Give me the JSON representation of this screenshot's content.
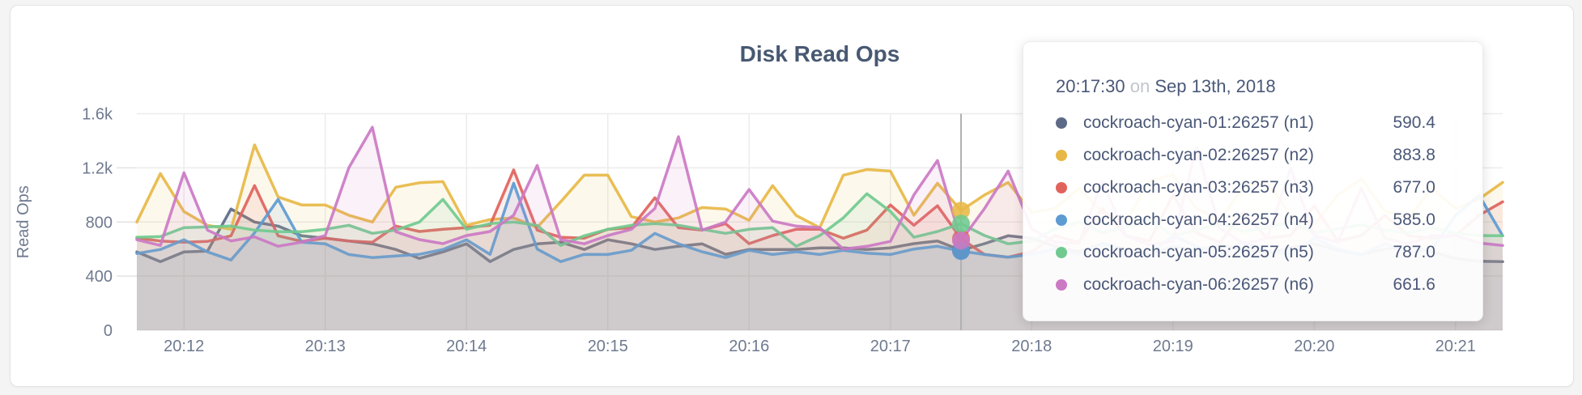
{
  "page": {
    "background": "#f4f4f4"
  },
  "chart_data": {
    "type": "line",
    "title": "Disk Read Ops",
    "ylabel": "Read Ops",
    "grid": true,
    "ylim": [
      0,
      1600
    ],
    "y_ticks": [
      {
        "value": 0,
        "label": "0"
      },
      {
        "value": 400,
        "label": "400"
      },
      {
        "value": 800,
        "label": "800"
      },
      {
        "value": 1200,
        "label": "1.2k"
      },
      {
        "value": 1600,
        "label": "1.6k"
      }
    ],
    "x_start": "20:11:40",
    "x_interval_seconds": 10,
    "x_tick_labels": [
      "20:12",
      "20:13",
      "20:14",
      "20:15",
      "20:16",
      "20:17",
      "20:18",
      "20:19",
      "20:20",
      "20:21"
    ],
    "series": [
      {
        "name": "cockroach-cyan-01:26257 (n1)",
        "node": "n1",
        "color": "#5c6a85",
        "values": [
          579,
          507,
          579,
          585,
          896,
          800,
          770,
          698,
          680,
          660,
          639,
          597,
          531,
          579,
          639,
          507,
          597,
          639,
          651,
          597,
          669,
          639,
          597,
          621,
          639,
          561,
          597,
          597,
          597,
          609,
          609,
          597,
          609,
          640,
          660,
          590.4,
          640,
          698,
          680,
          620,
          580,
          640,
          600,
          560,
          620,
          590,
          630,
          600,
          570,
          610,
          640,
          590,
          560,
          600,
          620,
          580,
          530,
          510,
          507
        ]
      },
      {
        "name": "cockroach-cyan-02:26257 (n2)",
        "node": "n2",
        "color": "#e7b845",
        "values": [
          800,
          1158,
          877,
          776,
          746,
          1370,
          985,
          926,
          926,
          850,
          800,
          1057,
          1090,
          1098,
          776,
          818,
          830,
          760,
          950,
          1146,
          1146,
          840,
          800,
          830,
          907,
          896,
          812,
          1069,
          848,
          758,
          1146,
          1188,
          1176,
          850,
          1086,
          883.8,
          1000,
          1092,
          870,
          900,
          1050,
          870,
          800,
          1100,
          1150,
          900,
          820,
          1060,
          1100,
          850,
          780,
          1000,
          1120,
          880,
          830,
          1050,
          900,
          970,
          1093
        ]
      },
      {
        "name": "cockroach-cyan-03:26257 (n3)",
        "node": "n3",
        "color": "#e0635c",
        "values": [
          681,
          660,
          651,
          657,
          698,
          1069,
          698,
          657,
          680,
          660,
          650,
          770,
          730,
          746,
          758,
          776,
          1185,
          740,
          687,
          680,
          746,
          758,
          979,
          758,
          740,
          788,
          640,
          700,
          746,
          746,
          680,
          740,
          926,
          776,
          920,
          677,
          560,
          540,
          580,
          700,
          650,
          900,
          700,
          660,
          1000,
          720,
          650,
          870,
          680,
          700,
          920,
          660,
          700,
          850,
          700,
          680,
          700,
          850,
          949
        ]
      },
      {
        "name": "cockroach-cyan-04:26257 (n4)",
        "node": "n4",
        "color": "#5d9bd3",
        "values": [
          567,
          597,
          669,
          579,
          519,
          720,
          967,
          651,
          639,
          560,
          537,
          549,
          561,
          597,
          669,
          561,
          1086,
          600,
          507,
          561,
          560,
          591,
          716,
          639,
          580,
          537,
          591,
          560,
          580,
          560,
          591,
          570,
          560,
          600,
          620,
          585,
          560,
          540,
          560,
          600,
          560,
          640,
          580,
          560,
          700,
          620,
          560,
          650,
          590,
          560,
          680,
          600,
          560,
          640,
          580,
          600,
          850,
          997,
          698
        ]
      },
      {
        "name": "cockroach-cyan-05:26257 (n5)",
        "node": "n5",
        "color": "#70ca8f",
        "values": [
          687,
          692,
          758,
          764,
          770,
          740,
          728,
          728,
          746,
          776,
          716,
          740,
          800,
          967,
          746,
          788,
          800,
          776,
          627,
          698,
          746,
          776,
          788,
          776,
          746,
          716,
          746,
          758,
          621,
          700,
          830,
          1009,
          878,
          687,
          730,
          787,
          700,
          639,
          660,
          750,
          800,
          720,
          760,
          820,
          700,
          740,
          790,
          730,
          760,
          800,
          720,
          750,
          780,
          740,
          720,
          760,
          716,
          700,
          698
        ]
      },
      {
        "name": "cockroach-cyan-06:26257 (n6)",
        "node": "n6",
        "color": "#cb7ac4",
        "values": [
          669,
          627,
          1164,
          740,
          660,
          690,
          621,
          651,
          700,
          1200,
          1500,
          728,
          670,
          640,
          700,
          730,
          850,
          1218,
          670,
          639,
          700,
          746,
          900,
          1430,
          740,
          800,
          1040,
          806,
          770,
          758,
          600,
          620,
          657,
          1000,
          1254,
          661.6,
          900,
          1176,
          750,
          650,
          640,
          1100,
          700,
          630,
          660,
          1350,
          750,
          640,
          680,
          1200,
          700,
          650,
          1050,
          680,
          640,
          700,
          700,
          645,
          627
        ]
      }
    ]
  },
  "tooltip": {
    "time": "20:17:30",
    "preposition": "on",
    "date": "Sep 13th, 2018",
    "hover_index": 35,
    "rows": [
      {
        "name": "cockroach-cyan-01:26257 (n1)",
        "value": "590.4",
        "color": "#5c6a85"
      },
      {
        "name": "cockroach-cyan-02:26257 (n2)",
        "value": "883.8",
        "color": "#e7b845"
      },
      {
        "name": "cockroach-cyan-03:26257 (n3)",
        "value": "677.0",
        "color": "#e0635c"
      },
      {
        "name": "cockroach-cyan-04:26257 (n4)",
        "value": "585.0",
        "color": "#5d9bd3"
      },
      {
        "name": "cockroach-cyan-05:26257 (n5)",
        "value": "787.0",
        "color": "#70ca8f"
      },
      {
        "name": "cockroach-cyan-06:26257 (n6)",
        "value": "661.6",
        "color": "#cb7ac4"
      }
    ],
    "colors": {
      "hover_line": "#b1b1b1"
    }
  }
}
